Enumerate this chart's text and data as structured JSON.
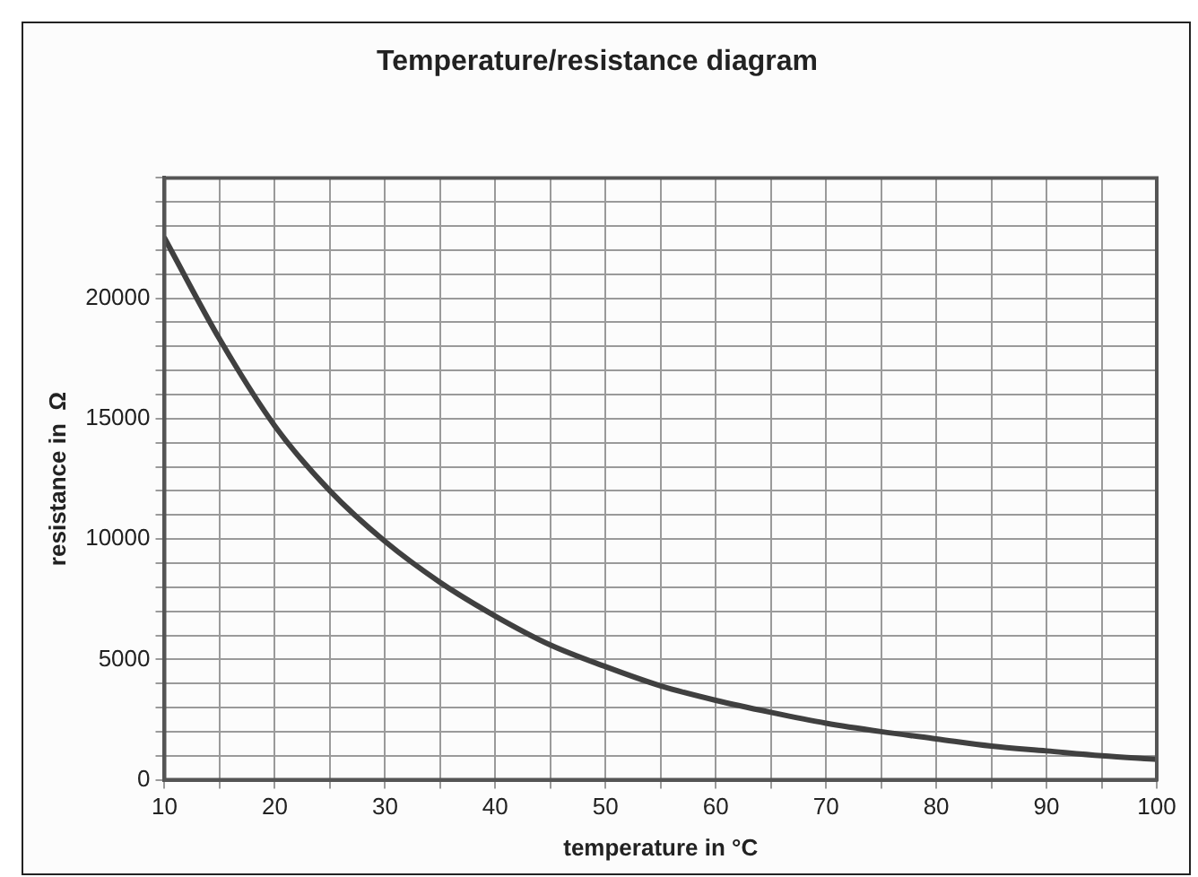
{
  "chart_data": {
    "type": "line",
    "title": "Temperature/resistance diagram",
    "xlabel": "temperature in °C",
    "ylabel": "resistance in  Ω",
    "x": [
      10,
      15,
      20,
      25,
      30,
      35,
      40,
      45,
      50,
      55,
      60,
      65,
      70,
      75,
      80,
      85,
      90,
      95,
      100
    ],
    "series": [
      {
        "color": "#404040",
        "values": [
          22500,
          18300,
          14700,
          12000,
          9900,
          8200,
          6800,
          5600,
          4700,
          3900,
          3300,
          2800,
          2350,
          2000,
          1700,
          1400,
          1200,
          1000,
          850
        ]
      }
    ],
    "xlim": [
      10,
      100
    ],
    "xticks": [
      10,
      {
        "value": 15,
        "label": null
      },
      20,
      {
        "value": 25,
        "label": null
      },
      30,
      {
        "value": 35,
        "label": null
      },
      40,
      {
        "value": 45,
        "label": null
      },
      50,
      {
        "value": 55,
        "label": null
      },
      60,
      {
        "value": 65,
        "label": null
      },
      70,
      {
        "value": 75,
        "label": null
      },
      80,
      {
        "value": 85,
        "label": null
      },
      90,
      {
        "value": 95,
        "label": null
      },
      100
    ],
    "ylim": [
      0,
      25000
    ],
    "yticks": [
      0,
      {
        "value": 1000,
        "label": null
      },
      {
        "value": 2000,
        "label": null
      },
      {
        "value": 3000,
        "label": null
      },
      {
        "value": 4000,
        "label": null
      },
      5000,
      {
        "value": 6000,
        "label": null
      },
      {
        "value": 7000,
        "label": null
      },
      {
        "value": 8000,
        "label": null
      },
      {
        "value": 9000,
        "label": null
      },
      10000,
      {
        "value": 11000,
        "label": null
      },
      {
        "value": 12000,
        "label": null
      },
      {
        "value": 13000,
        "label": null
      },
      {
        "value": 14000,
        "label": null
      },
      15000,
      {
        "value": 16000,
        "label": null
      },
      {
        "value": 17000,
        "label": null
      },
      {
        "value": 18000,
        "label": null
      },
      {
        "value": 19000,
        "label": null
      },
      20000,
      {
        "value": 21000,
        "label": null
      },
      {
        "value": 22000,
        "label": null
      },
      {
        "value": 23000,
        "label": null
      },
      {
        "value": 24000,
        "label": null
      },
      {
        "value": 25000,
        "label": null
      }
    ],
    "grid": true,
    "legend": false,
    "marker": "none",
    "line_style": "solid"
  }
}
